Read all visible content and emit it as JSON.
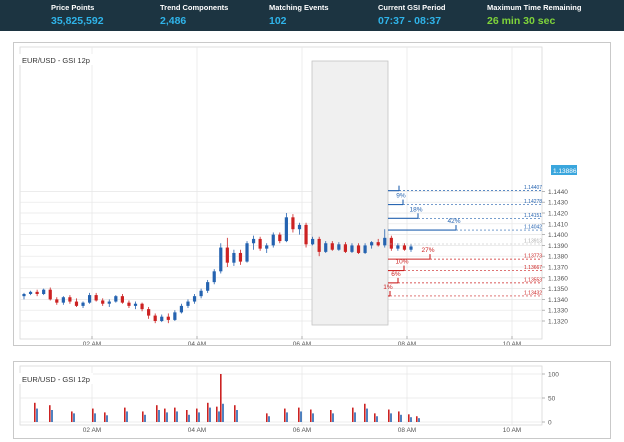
{
  "header": {
    "stats": [
      {
        "label": "Price Points",
        "value": "35,825,592"
      },
      {
        "label": "Trend Components",
        "value": "2,486"
      },
      {
        "label": "Matching Events",
        "value": "102"
      },
      {
        "label": "Current GSI Period",
        "value": "07:37 - 08:37"
      },
      {
        "label": "Maximum Time Remaining",
        "value": "26 min 30 sec"
      }
    ]
  },
  "colors": {
    "header_bg": "#1c3441",
    "accent_blue": "#2fb4ea",
    "accent_green": "#7fd43a",
    "bull": "#2563b0",
    "bear": "#cc2222",
    "current_price_bg": "#3aa6dd"
  },
  "main_chart": {
    "title": "EUR/USD - GSI 12p",
    "current_price": "1.13886",
    "y_ticks": [
      "1.1440",
      "1.1430",
      "1.1420",
      "1.1410",
      "1.1400",
      "1.1390",
      "1.1380",
      "1.1370",
      "1.1360",
      "1.1350",
      "1.1340",
      "1.1330",
      "1.1320"
    ],
    "x_ticks": [
      "02 AM",
      "04 AM",
      "06 AM",
      "08 AM",
      "10 AM"
    ]
  },
  "projections": {
    "up": [
      {
        "pct": "",
        "price": "1.14407"
      },
      {
        "pct": "9%",
        "price": "1.14278"
      },
      {
        "pct": "18%",
        "price": "1.14151"
      },
      {
        "pct": "42%",
        "price": "1.14042"
      }
    ],
    "down": [
      {
        "pct": "27%",
        "price": "1.13773"
      },
      {
        "pct": "10%",
        "price": "1.13667"
      },
      {
        "pct": "6%",
        "price": "1.13553"
      },
      {
        "pct": "1%",
        "price": "1.13432"
      }
    ],
    "faint_level": "1.13913"
  },
  "volume_chart": {
    "title": "EUR/USD - GSI 12p",
    "y_ticks": [
      "100",
      "50",
      "0"
    ],
    "x_ticks": [
      "02 AM",
      "04 AM",
      "06 AM",
      "08 AM",
      "10 AM"
    ]
  },
  "chart_data": [
    {
      "type": "candlestick",
      "title": "EUR/USD - GSI 12p",
      "x_ticks": [
        "02 AM",
        "04 AM",
        "06 AM",
        "08 AM",
        "10 AM"
      ],
      "ylim": [
        1.1315,
        1.1443
      ],
      "y_ticks": [
        1.144,
        1.143,
        1.142,
        1.141,
        1.14,
        1.139,
        1.138,
        1.137,
        1.136,
        1.135,
        1.134,
        1.133,
        1.132
      ],
      "grid": true,
      "current_price": 1.13886,
      "highlight_window": [
        "06:08",
        "07:37"
      ],
      "candles": [
        [
          1.1343,
          1.1346,
          1.134,
          1.1345
        ],
        [
          1.1345,
          1.1348,
          1.1344,
          1.1347
        ],
        [
          1.1347,
          1.1349,
          1.1343,
          1.1345
        ],
        [
          1.1345,
          1.135,
          1.1344,
          1.1349
        ],
        [
          1.1349,
          1.1351,
          1.1339,
          1.134
        ],
        [
          1.134,
          1.1342,
          1.1335,
          1.1337
        ],
        [
          1.1337,
          1.1343,
          1.1335,
          1.1342
        ],
        [
          1.1342,
          1.1344,
          1.1336,
          1.1338
        ],
        [
          1.1338,
          1.1341,
          1.1333,
          1.1334
        ],
        [
          1.1334,
          1.1338,
          1.1332,
          1.1337
        ],
        [
          1.1337,
          1.1346,
          1.1336,
          1.1344
        ],
        [
          1.1344,
          1.1346,
          1.1338,
          1.1339
        ],
        [
          1.1339,
          1.1341,
          1.1334,
          1.1336
        ],
        [
          1.1336,
          1.134,
          1.1333,
          1.1338
        ],
        [
          1.1338,
          1.1344,
          1.1337,
          1.1343
        ],
        [
          1.1343,
          1.1345,
          1.1336,
          1.1337
        ],
        [
          1.1337,
          1.1339,
          1.1332,
          1.1334
        ],
        [
          1.1334,
          1.1338,
          1.1331,
          1.1336
        ],
        [
          1.1336,
          1.1337,
          1.1329,
          1.1331
        ],
        [
          1.1331,
          1.1333,
          1.1322,
          1.1325
        ],
        [
          1.1325,
          1.1327,
          1.1318,
          1.132
        ],
        [
          1.132,
          1.1326,
          1.1319,
          1.1324
        ],
        [
          1.1324,
          1.1327,
          1.1318,
          1.1321
        ],
        [
          1.1321,
          1.133,
          1.132,
          1.1328
        ],
        [
          1.1328,
          1.1336,
          1.1327,
          1.1334
        ],
        [
          1.1334,
          1.134,
          1.1332,
          1.1338
        ],
        [
          1.1338,
          1.1345,
          1.1336,
          1.1343
        ],
        [
          1.1343,
          1.135,
          1.1341,
          1.1348
        ],
        [
          1.1348,
          1.1358,
          1.1346,
          1.1356
        ],
        [
          1.1356,
          1.1368,
          1.1354,
          1.1366
        ],
        [
          1.1366,
          1.1392,
          1.1364,
          1.1388
        ],
        [
          1.1388,
          1.1397,
          1.137,
          1.1374
        ],
        [
          1.1374,
          1.1386,
          1.1371,
          1.1383
        ],
        [
          1.1383,
          1.1386,
          1.1372,
          1.1375
        ],
        [
          1.1375,
          1.1394,
          1.1374,
          1.1392
        ],
        [
          1.1392,
          1.1399,
          1.1386,
          1.1396
        ],
        [
          1.1396,
          1.1398,
          1.1385,
          1.1387
        ],
        [
          1.1387,
          1.1392,
          1.1383,
          1.139
        ],
        [
          1.139,
          1.1402,
          1.1388,
          1.14
        ],
        [
          1.14,
          1.1402,
          1.1392,
          1.1394
        ],
        [
          1.1394,
          1.142,
          1.1393,
          1.1416
        ],
        [
          1.1416,
          1.1419,
          1.1402,
          1.1405
        ],
        [
          1.1405,
          1.1411,
          1.14,
          1.1409
        ],
        [
          1.1409,
          1.1411,
          1.1388,
          1.1391
        ],
        [
          1.1391,
          1.1398,
          1.139,
          1.1396
        ],
        [
          1.1396,
          1.1398,
          1.138,
          1.1384
        ],
        [
          1.1384,
          1.1394,
          1.1383,
          1.1392
        ],
        [
          1.1392,
          1.1394,
          1.1385,
          1.1386
        ],
        [
          1.1386,
          1.1393,
          1.1385,
          1.1391
        ],
        [
          1.1391,
          1.1393,
          1.1383,
          1.1384
        ],
        [
          1.1384,
          1.1392,
          1.1383,
          1.139
        ],
        [
          1.139,
          1.1392,
          1.1382,
          1.1383
        ],
        [
          1.1383,
          1.1392,
          1.1382,
          1.139
        ],
        [
          1.139,
          1.1394,
          1.1387,
          1.1393
        ],
        [
          1.1393,
          1.1396,
          1.1389,
          1.139
        ],
        [
          1.139,
          1.1405,
          1.1388,
          1.1397
        ],
        [
          1.1397,
          1.1399,
          1.1385,
          1.1387
        ],
        [
          1.1387,
          1.1392,
          1.1385,
          1.139
        ],
        [
          1.139,
          1.1392,
          1.1385,
          1.1386
        ],
        [
          1.1386,
          1.1391,
          1.1384,
          1.1389
        ]
      ]
    },
    {
      "type": "bar",
      "title": "EUR/USD - GSI 12p",
      "ylim": [
        0,
        100
      ],
      "y_ticks": [
        100,
        50,
        0
      ],
      "x_ticks": [
        "02 AM",
        "04 AM",
        "06 AM",
        "08 AM",
        "10 AM"
      ],
      "grid": true
    }
  ]
}
